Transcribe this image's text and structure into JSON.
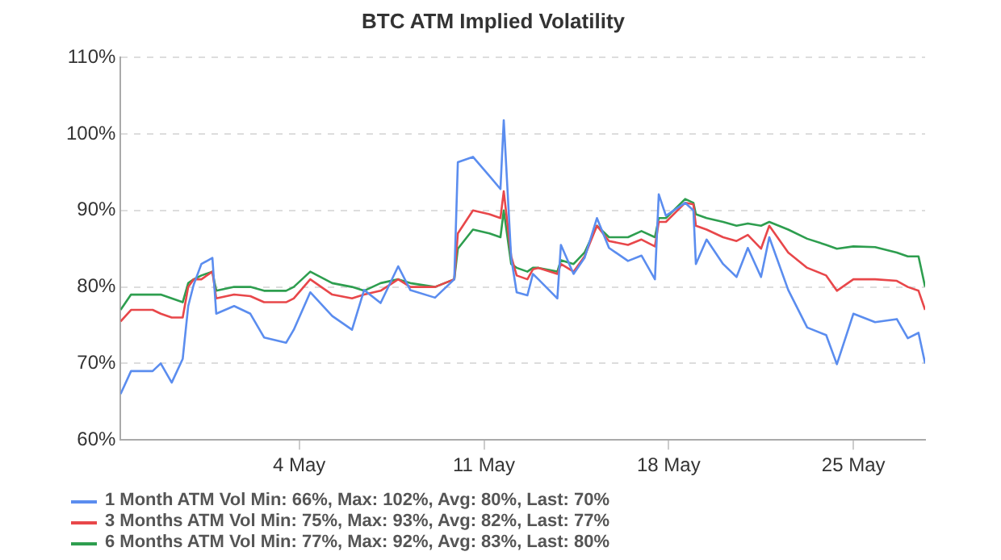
{
  "chart_data": {
    "type": "line",
    "title": "BTC ATM Implied Volatility",
    "x": [
      "--04-27T05:30",
      "--04-27T15:00",
      "--04-28T10:40",
      "--04-28T18:00",
      "--04-29T04:00",
      "--04-29T14:00",
      "--04-29T19:00",
      "--04-30T00:00",
      "--04-30T07:00",
      "--04-30T17:00",
      "--04-30T20:30",
      "--05-01T12:45",
      "--05-02T03:30",
      "--05-02T16:00",
      "--05-03T12:00",
      "--05-03T19:00",
      "--05-04T10:00",
      "--05-05T06:00",
      "--05-06T00:00",
      "--05-06T11:00",
      "--05-07T02:00",
      "--05-07T18:00",
      "--05-08T05:00",
      "--05-09T03:30",
      "--05-09T21:00",
      "--05-10T00:15",
      "--05-10T14:00",
      "--05-11T05:00",
      "--05-11T15:00",
      "--05-11T18:00",
      "--05-12T00:45",
      "--05-12T05:45",
      "--05-12T15:30",
      "--05-12T20:30",
      "--05-13T01:30",
      "--05-13T18:45",
      "--05-13T22:00",
      "--05-14T09:30",
      "--05-14T19:30",
      "--05-15T06:45",
      "--05-15T17:45",
      "--05-16T11:00",
      "--05-16T23:15",
      "--05-17T11:30",
      "--05-17T15:00",
      "--05-17T21:30",
      "--05-18T15:00",
      "--05-18T22:30",
      "--05-19T00:45",
      "--05-19T10:30",
      "--05-20T01:30",
      "--05-20T13:45",
      "--05-21T00:00",
      "--05-21T12:00",
      "--05-21T19:30",
      "--05-22T12:45",
      "--05-23T06:00",
      "--05-23T23:15",
      "--05-24T09:00",
      "--05-25T00:00",
      "--05-25T19:45",
      "--05-26T15:30",
      "--05-27T01:30",
      "--05-27T11:15",
      "--05-27T17:15"
    ],
    "series": [
      {
        "name": "1 Month ATM Vol Min: 66%, Max: 102%, Avg: 80%, Last: 70%",
        "color": "#5b8def",
        "values": [
          66,
          69,
          69,
          70,
          67.5,
          70.6,
          77.5,
          80.3,
          83,
          83.8,
          76.5,
          77.5,
          76.5,
          73.4,
          72.7,
          74.4,
          79.3,
          76.2,
          74.4,
          79.6,
          77.9,
          82.7,
          79.6,
          78.6,
          81,
          96.3,
          97,
          94.5,
          92.8,
          101.8,
          83.8,
          79.3,
          78.9,
          81.7,
          81,
          78.5,
          85.5,
          81.7,
          83.8,
          89,
          85.1,
          83.4,
          84.1,
          81,
          92.1,
          89.3,
          91,
          90,
          83,
          86.2,
          83,
          81.3,
          85.1,
          81.3,
          86.5,
          79.6,
          74.7,
          73.7,
          69.9,
          76.5,
          75.4,
          75.8,
          73.3,
          74,
          70
        ]
      },
      {
        "name": "3 Months ATM Vol Min: 75%, Max: 93%, Avg: 82%, Last: 77%",
        "color": "#e8474a",
        "values": [
          75.5,
          77,
          77,
          76.5,
          76,
          76,
          80,
          81,
          81,
          82,
          78.5,
          79,
          78.8,
          78,
          78,
          78.5,
          81,
          79,
          78.5,
          79,
          79.5,
          81,
          80,
          80,
          81,
          87,
          90,
          89.5,
          89,
          92.5,
          84,
          81.5,
          81,
          82.3,
          82.5,
          81.7,
          83,
          82,
          84,
          88,
          86,
          85.5,
          86.2,
          85.3,
          88.5,
          88.5,
          91,
          90.8,
          88,
          87.5,
          86.5,
          86,
          86.8,
          85,
          88,
          84.5,
          82.5,
          81.5,
          79.5,
          81,
          81,
          80.8,
          80,
          79.5,
          77
        ]
      },
      {
        "name": "6 Months ATM Vol Min: 77%, Max: 92%, Avg: 83%, Last: 80%",
        "color": "#2e9e4f",
        "values": [
          77,
          79,
          79,
          79,
          78.5,
          78,
          80.5,
          81,
          81.5,
          82,
          79.5,
          80,
          80,
          79.5,
          79.5,
          80,
          82,
          80.5,
          80,
          79.5,
          80.5,
          81,
          80.5,
          80,
          81,
          85,
          87.5,
          87,
          86.5,
          90,
          83,
          82.5,
          82,
          82.5,
          82.5,
          82,
          83.5,
          83,
          84.5,
          88,
          86.5,
          86.5,
          87.3,
          86.5,
          89,
          89,
          91.5,
          91,
          89.5,
          89,
          88.5,
          88,
          88.3,
          88,
          88.5,
          87.5,
          86.3,
          85.5,
          85,
          85.3,
          85.2,
          84.5,
          84,
          84,
          80
        ]
      }
    ],
    "xlim": [
      "--04-27T05:30",
      "--05-27T17:15"
    ],
    "xticks": [
      {
        "value": "--05-04",
        "label": "4 May"
      },
      {
        "value": "--05-11",
        "label": "11 May"
      },
      {
        "value": "--05-18",
        "label": "18 May"
      },
      {
        "value": "--05-25",
        "label": "25 May"
      }
    ],
    "ylim": [
      60,
      110
    ],
    "yticks": [
      {
        "value": 60,
        "label": "60%"
      },
      {
        "value": 70,
        "label": "70%"
      },
      {
        "value": 80,
        "label": "80%"
      },
      {
        "value": 90,
        "label": "90%"
      },
      {
        "value": 100,
        "label": "100%"
      },
      {
        "value": 110,
        "label": "110%"
      }
    ],
    "grid": "y",
    "legend": "bottom",
    "marker": "none",
    "line_style": "solid"
  }
}
